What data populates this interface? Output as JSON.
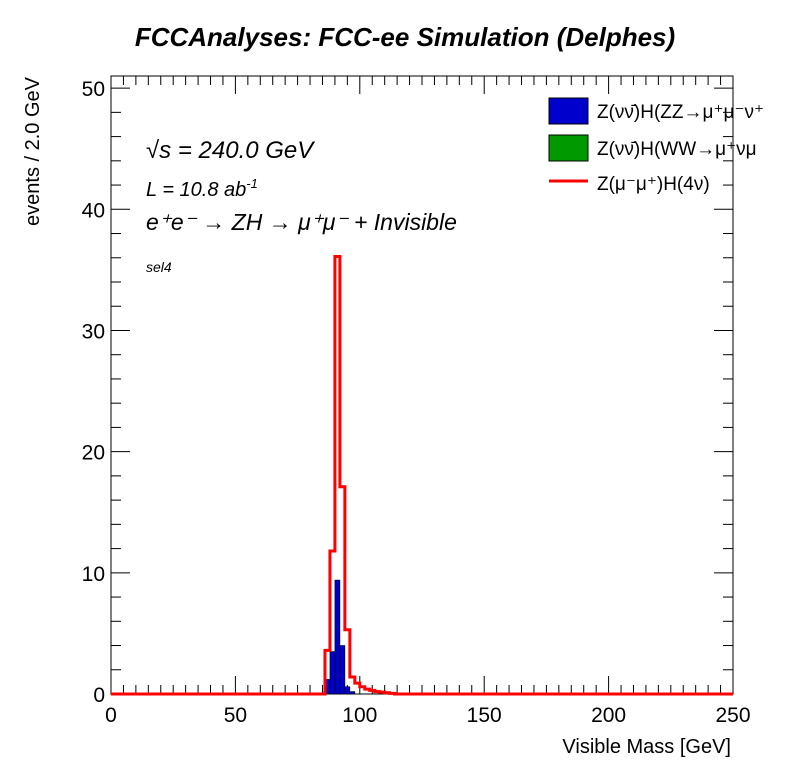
{
  "chart_data": {
    "type": "histogram",
    "title": "FCCAnalyses: FCC-ee Simulation (Delphes)",
    "xlabel": "Visible Mass [GeV]",
    "ylabel": "events / 2.0 GeV",
    "xlim": [
      0,
      250
    ],
    "ylim": [
      0,
      51
    ],
    "bin_width": 2.0,
    "x_ticks": [
      0,
      50,
      100,
      150,
      200,
      250
    ],
    "y_ticks": [
      0,
      10,
      20,
      30,
      40,
      50
    ],
    "annotations": {
      "sqrt_s_symbol": "√s",
      "sqrt_s_value": " = 240.0 GeV",
      "lumi_text": "L = 10.8 ab",
      "lumi_exp": "-1",
      "process_text": "e⁺e⁻ → ZH → μ⁺μ⁻ + Invisible",
      "selection": "sel4"
    },
    "series": [
      {
        "name": "Z(νν̄)H(ZZ→μ⁺μ⁻ν⁺",
        "style": "filled",
        "color": "#0000cc",
        "bins": [
          [
            86,
            1.2
          ],
          [
            88,
            3.5
          ],
          [
            90,
            9.4
          ],
          [
            92,
            4.0
          ],
          [
            94,
            0.6
          ],
          [
            96,
            0.2
          ]
        ]
      },
      {
        "name": "Z(νν̄)H(WW→μ⁺νμ",
        "style": "filled",
        "color": "#009900",
        "bins": []
      },
      {
        "name": "Z(μ⁻μ⁺)H(4ν)",
        "style": "line",
        "color": "#ff0000",
        "bins": [
          [
            84,
            0
          ],
          [
            86,
            3.6
          ],
          [
            88,
            11.8
          ],
          [
            90,
            36.1
          ],
          [
            92,
            17.1
          ],
          [
            94,
            5.3
          ],
          [
            96,
            1.4
          ],
          [
            98,
            0.9
          ],
          [
            100,
            0.6
          ],
          [
            102,
            0.4
          ],
          [
            104,
            0.3
          ],
          [
            106,
            0.2
          ],
          [
            108,
            0.15
          ],
          [
            110,
            0.1
          ],
          [
            112,
            0.05
          ]
        ]
      }
    ]
  }
}
